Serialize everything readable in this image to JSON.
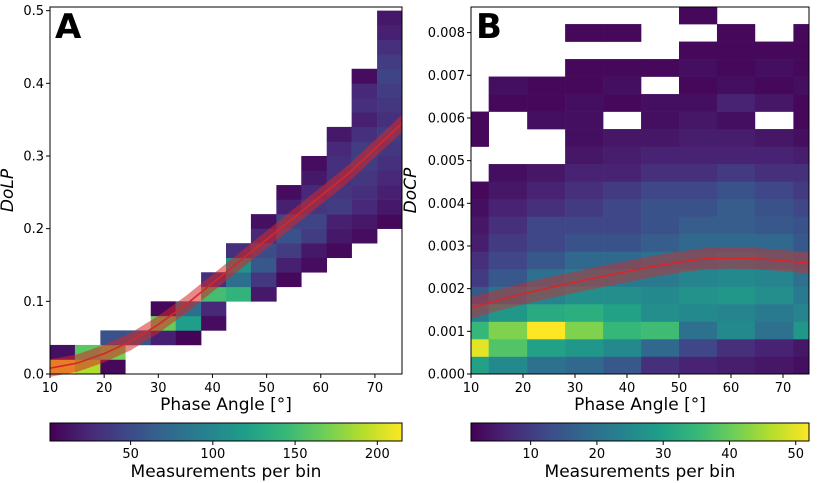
{
  "chart_data": [
    {
      "type": "heatmap",
      "panel_label": "A",
      "title": "",
      "xlabel": "Phase Angle [°]",
      "ylabel": "DoLP",
      "xlim": [
        10,
        75
      ],
      "ylim": [
        0,
        0.505
      ],
      "xticks": [
        10,
        20,
        30,
        40,
        50,
        60,
        70
      ],
      "yticks": [
        0.0,
        0.1,
        0.2,
        0.3,
        0.4,
        0.5
      ],
      "xtick_labels": [
        "10",
        "20",
        "30",
        "40",
        "50",
        "60",
        "70"
      ],
      "ytick_labels": [
        "0.0",
        "0.1",
        "0.2",
        "0.3",
        "0.4",
        "0.5"
      ],
      "x_edges": [
        10,
        14.6,
        19.3,
        23.9,
        28.6,
        33.2,
        37.9,
        42.5,
        47.1,
        51.8,
        56.4,
        61.1,
        65.7,
        70.4,
        75
      ],
      "y_edges": [
        0,
        0.02,
        0.04,
        0.06,
        0.08,
        0.1,
        0.12,
        0.14,
        0.16,
        0.18,
        0.2,
        0.22,
        0.24,
        0.26,
        0.28,
        0.3,
        0.32,
        0.34,
        0.36,
        0.38,
        0.4,
        0.42,
        0.44,
        0.46,
        0.48,
        0.5
      ],
      "cells": [
        [
          0,
          0,
          215
        ],
        [
          1,
          0,
          190
        ],
        [
          2,
          0,
          5
        ],
        [
          0,
          1,
          10
        ],
        [
          1,
          1,
          160
        ],
        [
          2,
          1,
          170
        ],
        [
          2,
          2,
          55
        ],
        [
          3,
          2,
          58
        ],
        [
          4,
          2,
          20
        ],
        [
          5,
          2,
          3
        ],
        [
          4,
          3,
          165
        ],
        [
          5,
          3,
          120
        ],
        [
          6,
          3,
          8
        ],
        [
          4,
          4,
          5
        ],
        [
          5,
          4,
          80
        ],
        [
          6,
          4,
          25
        ],
        [
          6,
          5,
          150
        ],
        [
          7,
          5,
          140
        ],
        [
          8,
          5,
          15
        ],
        [
          6,
          6,
          30
        ],
        [
          7,
          6,
          80
        ],
        [
          8,
          6,
          35
        ],
        [
          9,
          6,
          5
        ],
        [
          7,
          7,
          110
        ],
        [
          8,
          7,
          60
        ],
        [
          9,
          7,
          20
        ],
        [
          10,
          7,
          8
        ],
        [
          7,
          8,
          30
        ],
        [
          8,
          8,
          50
        ],
        [
          9,
          8,
          40
        ],
        [
          10,
          8,
          15
        ],
        [
          11,
          8,
          6
        ],
        [
          8,
          9,
          25
        ],
        [
          9,
          9,
          55
        ],
        [
          10,
          9,
          40
        ],
        [
          11,
          9,
          15
        ],
        [
          12,
          9,
          8
        ],
        [
          8,
          10,
          10
        ],
        [
          9,
          10,
          45
        ],
        [
          10,
          10,
          45
        ],
        [
          11,
          10,
          20
        ],
        [
          12,
          10,
          15
        ],
        [
          13,
          10,
          6
        ],
        [
          9,
          11,
          20
        ],
        [
          10,
          11,
          35
        ],
        [
          11,
          11,
          40
        ],
        [
          12,
          11,
          25
        ],
        [
          13,
          11,
          15
        ],
        [
          9,
          12,
          8
        ],
        [
          10,
          12,
          25
        ],
        [
          11,
          12,
          35
        ],
        [
          12,
          12,
          30
        ],
        [
          13,
          12,
          20
        ],
        [
          10,
          13,
          15
        ],
        [
          11,
          13,
          30
        ],
        [
          12,
          13,
          35
        ],
        [
          13,
          13,
          25
        ],
        [
          10,
          14,
          8
        ],
        [
          11,
          14,
          30
        ],
        [
          12,
          14,
          40
        ],
        [
          13,
          14,
          30
        ],
        [
          11,
          15,
          25
        ],
        [
          12,
          15,
          40
        ],
        [
          13,
          15,
          35
        ],
        [
          11,
          16,
          15
        ],
        [
          12,
          16,
          30
        ],
        [
          13,
          16,
          40
        ],
        [
          12,
          17,
          20
        ],
        [
          13,
          17,
          30
        ],
        [
          12,
          18,
          30
        ],
        [
          13,
          18,
          35
        ],
        [
          12,
          19,
          25
        ],
        [
          13,
          19,
          40
        ],
        [
          12,
          20,
          8
        ],
        [
          13,
          20,
          45
        ],
        [
          13,
          21,
          40
        ],
        [
          13,
          22,
          30
        ],
        [
          13,
          23,
          20
        ],
        [
          13,
          24,
          15
        ]
      ],
      "fit_x": [
        10,
        15,
        20,
        25,
        30,
        35,
        40,
        45,
        50,
        55,
        60,
        65,
        70,
        75
      ],
      "fit_y": [
        0.008,
        0.015,
        0.028,
        0.045,
        0.068,
        0.095,
        0.125,
        0.155,
        0.185,
        0.215,
        0.245,
        0.275,
        0.31,
        0.345
      ],
      "fit_band": 0.012,
      "colorbar": {
        "label": "Measurements per bin",
        "vmin": 1,
        "vmax": 215,
        "ticks": [
          50,
          100,
          150,
          200
        ],
        "tick_labels": [
          "50",
          "100",
          "150",
          "200"
        ]
      }
    },
    {
      "type": "heatmap",
      "panel_label": "B",
      "title": "",
      "xlabel": "Phase Angle [°]",
      "ylabel": "DoCP",
      "xlim": [
        10,
        75
      ],
      "ylim": [
        0,
        0.0086
      ],
      "xticks": [
        10,
        20,
        30,
        40,
        50,
        60,
        70
      ],
      "yticks": [
        0.0,
        0.001,
        0.002,
        0.003,
        0.004,
        0.005,
        0.006,
        0.007,
        0.008
      ],
      "xtick_labels": [
        "10",
        "20",
        "30",
        "40",
        "50",
        "60",
        "70"
      ],
      "ytick_labels": [
        "0.000",
        "0.001",
        "0.002",
        "0.003",
        "0.004",
        "0.005",
        "0.006",
        "0.007",
        "0.008"
      ],
      "x_edges": [
        10,
        13.4,
        20.8,
        28.1,
        35.4,
        42.7,
        50.0,
        57.3,
        64.6,
        72.0,
        75
      ],
      "y_edges": [
        0,
        0.00041,
        0.00082,
        0.00123,
        0.00164,
        0.00205,
        0.00246,
        0.00287,
        0.00328,
        0.00369,
        0.0041,
        0.00451,
        0.00492,
        0.00533,
        0.00574,
        0.00615,
        0.00656,
        0.00697,
        0.00738,
        0.00779,
        0.0082,
        0.0086
      ],
      "cells": [
        [
          0,
          0,
          30
        ],
        [
          1,
          0,
          25
        ],
        [
          2,
          0,
          20
        ],
        [
          3,
          0,
          18
        ],
        [
          4,
          0,
          15
        ],
        [
          5,
          0,
          8
        ],
        [
          6,
          0,
          6
        ],
        [
          7,
          0,
          5
        ],
        [
          8,
          0,
          4
        ],
        [
          9,
          0,
          3
        ],
        [
          0,
          1,
          50
        ],
        [
          1,
          1,
          38
        ],
        [
          2,
          1,
          30
        ],
        [
          3,
          1,
          28
        ],
        [
          4,
          1,
          25
        ],
        [
          5,
          1,
          18
        ],
        [
          6,
          1,
          12
        ],
        [
          7,
          1,
          8
        ],
        [
          8,
          1,
          6
        ],
        [
          9,
          1,
          4
        ],
        [
          0,
          2,
          35
        ],
        [
          1,
          2,
          42
        ],
        [
          2,
          2,
          52
        ],
        [
          3,
          2,
          42
        ],
        [
          4,
          2,
          35
        ],
        [
          5,
          2,
          36
        ],
        [
          6,
          2,
          20
        ],
        [
          7,
          2,
          25
        ],
        [
          8,
          2,
          20
        ],
        [
          9,
          2,
          28
        ],
        [
          0,
          3,
          22
        ],
        [
          1,
          3,
          28
        ],
        [
          2,
          3,
          32
        ],
        [
          3,
          3,
          33
        ],
        [
          4,
          3,
          30
        ],
        [
          5,
          3,
          26
        ],
        [
          6,
          3,
          25
        ],
        [
          7,
          3,
          24
        ],
        [
          8,
          3,
          22
        ],
        [
          9,
          3,
          24
        ],
        [
          0,
          4,
          15
        ],
        [
          1,
          4,
          20
        ],
        [
          2,
          4,
          24
        ],
        [
          3,
          4,
          26
        ],
        [
          4,
          4,
          26
        ],
        [
          5,
          4,
          25
        ],
        [
          6,
          4,
          27
        ],
        [
          7,
          4,
          28
        ],
        [
          8,
          4,
          26
        ],
        [
          9,
          4,
          22
        ],
        [
          0,
          5,
          10
        ],
        [
          1,
          5,
          15
        ],
        [
          2,
          5,
          20
        ],
        [
          3,
          5,
          22
        ],
        [
          4,
          5,
          22
        ],
        [
          5,
          5,
          22
        ],
        [
          6,
          5,
          24
        ],
        [
          7,
          5,
          25
        ],
        [
          8,
          5,
          24
        ],
        [
          9,
          5,
          20
        ],
        [
          0,
          6,
          8
        ],
        [
          1,
          6,
          12
        ],
        [
          2,
          6,
          15
        ],
        [
          3,
          6,
          18
        ],
        [
          4,
          6,
          18
        ],
        [
          5,
          6,
          20
        ],
        [
          6,
          6,
          20
        ],
        [
          7,
          6,
          22
        ],
        [
          8,
          6,
          20
        ],
        [
          9,
          6,
          18
        ],
        [
          0,
          7,
          5
        ],
        [
          1,
          7,
          10
        ],
        [
          2,
          7,
          12
        ],
        [
          3,
          7,
          14
        ],
        [
          4,
          7,
          14
        ],
        [
          5,
          7,
          16
        ],
        [
          6,
          7,
          18
        ],
        [
          7,
          7,
          18
        ],
        [
          8,
          7,
          18
        ],
        [
          9,
          7,
          15
        ],
        [
          0,
          8,
          4
        ],
        [
          1,
          8,
          8
        ],
        [
          2,
          8,
          12
        ],
        [
          3,
          8,
          12
        ],
        [
          4,
          8,
          12
        ],
        [
          5,
          8,
          14
        ],
        [
          6,
          8,
          16
        ],
        [
          7,
          8,
          16
        ],
        [
          8,
          8,
          15
        ],
        [
          9,
          8,
          14
        ],
        [
          0,
          9,
          3
        ],
        [
          1,
          9,
          6
        ],
        [
          2,
          9,
          8
        ],
        [
          3,
          9,
          10
        ],
        [
          4,
          9,
          12
        ],
        [
          5,
          9,
          14
        ],
        [
          6,
          9,
          14
        ],
        [
          7,
          9,
          16
        ],
        [
          8,
          9,
          14
        ],
        [
          9,
          9,
          12
        ],
        [
          0,
          10,
          2
        ],
        [
          1,
          10,
          4
        ],
        [
          2,
          10,
          6
        ],
        [
          3,
          10,
          8
        ],
        [
          4,
          10,
          10
        ],
        [
          5,
          10,
          12
        ],
        [
          6,
          10,
          12
        ],
        [
          7,
          10,
          14
        ],
        [
          8,
          10,
          12
        ],
        [
          9,
          10,
          10
        ],
        [
          1,
          11,
          3
        ],
        [
          2,
          11,
          4
        ],
        [
          3,
          11,
          6
        ],
        [
          4,
          11,
          6
        ],
        [
          5,
          11,
          8
        ],
        [
          6,
          11,
          8
        ],
        [
          7,
          11,
          10
        ],
        [
          8,
          11,
          8
        ],
        [
          9,
          11,
          8
        ],
        [
          3,
          12,
          4
        ],
        [
          4,
          12,
          5
        ],
        [
          5,
          12,
          6
        ],
        [
          6,
          12,
          6
        ],
        [
          7,
          12,
          6
        ],
        [
          8,
          12,
          6
        ],
        [
          9,
          12,
          5
        ],
        [
          0,
          13,
          2
        ],
        [
          3,
          13,
          3
        ],
        [
          4,
          13,
          4
        ],
        [
          5,
          13,
          4
        ],
        [
          6,
          13,
          5
        ],
        [
          7,
          13,
          5
        ],
        [
          8,
          13,
          4
        ],
        [
          9,
          13,
          3
        ],
        [
          0,
          14,
          2
        ],
        [
          2,
          14,
          3
        ],
        [
          3,
          14,
          3
        ],
        [
          5,
          14,
          3
        ],
        [
          6,
          14,
          4
        ],
        [
          7,
          14,
          3
        ],
        [
          9,
          14,
          2
        ],
        [
          1,
          15,
          2
        ],
        [
          2,
          15,
          2
        ],
        [
          3,
          15,
          3
        ],
        [
          4,
          15,
          2
        ],
        [
          5,
          15,
          3
        ],
        [
          6,
          15,
          3
        ],
        [
          7,
          15,
          6
        ],
        [
          8,
          15,
          4
        ],
        [
          9,
          15,
          2
        ],
        [
          1,
          16,
          3
        ],
        [
          2,
          16,
          2
        ],
        [
          3,
          16,
          2
        ],
        [
          4,
          16,
          3
        ],
        [
          6,
          16,
          2
        ],
        [
          7,
          16,
          3
        ],
        [
          8,
          16,
          2
        ],
        [
          9,
          16,
          3
        ],
        [
          3,
          17,
          2
        ],
        [
          4,
          17,
          2
        ],
        [
          5,
          17,
          2
        ],
        [
          6,
          17,
          3
        ],
        [
          7,
          17,
          2
        ],
        [
          8,
          17,
          3
        ],
        [
          9,
          17,
          2
        ],
        [
          6,
          18,
          2
        ],
        [
          7,
          18,
          2
        ],
        [
          8,
          18,
          2
        ],
        [
          9,
          18,
          2
        ],
        [
          3,
          19,
          2
        ],
        [
          4,
          19,
          2
        ],
        [
          7,
          19,
          2
        ],
        [
          9,
          19,
          2
        ],
        [
          6,
          20,
          2
        ]
      ],
      "fit_x": [
        10,
        15,
        20,
        25,
        30,
        35,
        40,
        45,
        50,
        55,
        60,
        65,
        70,
        75
      ],
      "fit_y": [
        0.00155,
        0.00172,
        0.00188,
        0.00202,
        0.00215,
        0.00228,
        0.0024,
        0.00252,
        0.00262,
        0.0027,
        0.00272,
        0.0027,
        0.00266,
        0.0026
      ],
      "fit_band": 0.00025,
      "colorbar": {
        "label": "Measurements per bin",
        "vmin": 1,
        "vmax": 52,
        "ticks": [
          10,
          20,
          30,
          40,
          50
        ],
        "tick_labels": [
          "10",
          "20",
          "30",
          "40",
          "50"
        ]
      }
    }
  ],
  "colors": {
    "fit_line": "#d62728",
    "fit_band": "#d62728"
  }
}
